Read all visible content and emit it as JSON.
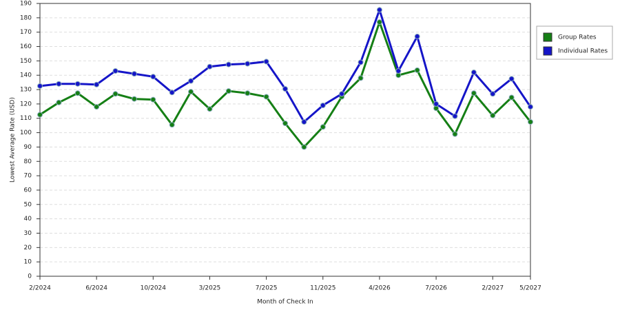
{
  "chart_data": {
    "type": "line",
    "x_label": "Month of Check In",
    "y_label": "Lowest Average Rate (USD)",
    "categories": [
      "2/2024",
      null,
      null,
      "6/2024",
      null,
      null,
      "10/2024",
      null,
      null,
      "3/2025",
      null,
      null,
      "7/2025",
      null,
      null,
      "11/2025",
      null,
      null,
      "4/2026",
      null,
      null,
      "7/2026",
      null,
      null,
      "2/2027",
      null,
      "5/2027"
    ],
    "series": [
      {
        "name": "Group Rates",
        "color": "#157f15",
        "values": [
          112.5,
          121,
          127.5,
          118,
          127,
          123.5,
          123,
          105.5,
          128.5,
          116.5,
          129,
          127.5,
          125,
          106.5,
          90,
          104,
          125,
          138,
          177,
          140,
          143.5,
          117,
          99,
          127.5,
          112,
          124.5,
          107.5
        ]
      },
      {
        "name": "Individual Rates",
        "color": "#1515c8",
        "values": [
          132.5,
          134,
          134,
          133.5,
          143,
          141,
          139,
          128,
          136,
          146,
          147.5,
          148,
          149.5,
          130.5,
          107.5,
          119,
          127,
          149,
          185.5,
          143,
          167,
          120,
          111.5,
          142,
          127,
          137.5,
          118
        ]
      }
    ],
    "ylim": [
      0,
      190
    ],
    "yticks": [
      0,
      10,
      20,
      30,
      40,
      50,
      60,
      70,
      80,
      90,
      100,
      110,
      120,
      130,
      140,
      150,
      160,
      170,
      180,
      190
    ],
    "grid": true,
    "legend": "right"
  }
}
